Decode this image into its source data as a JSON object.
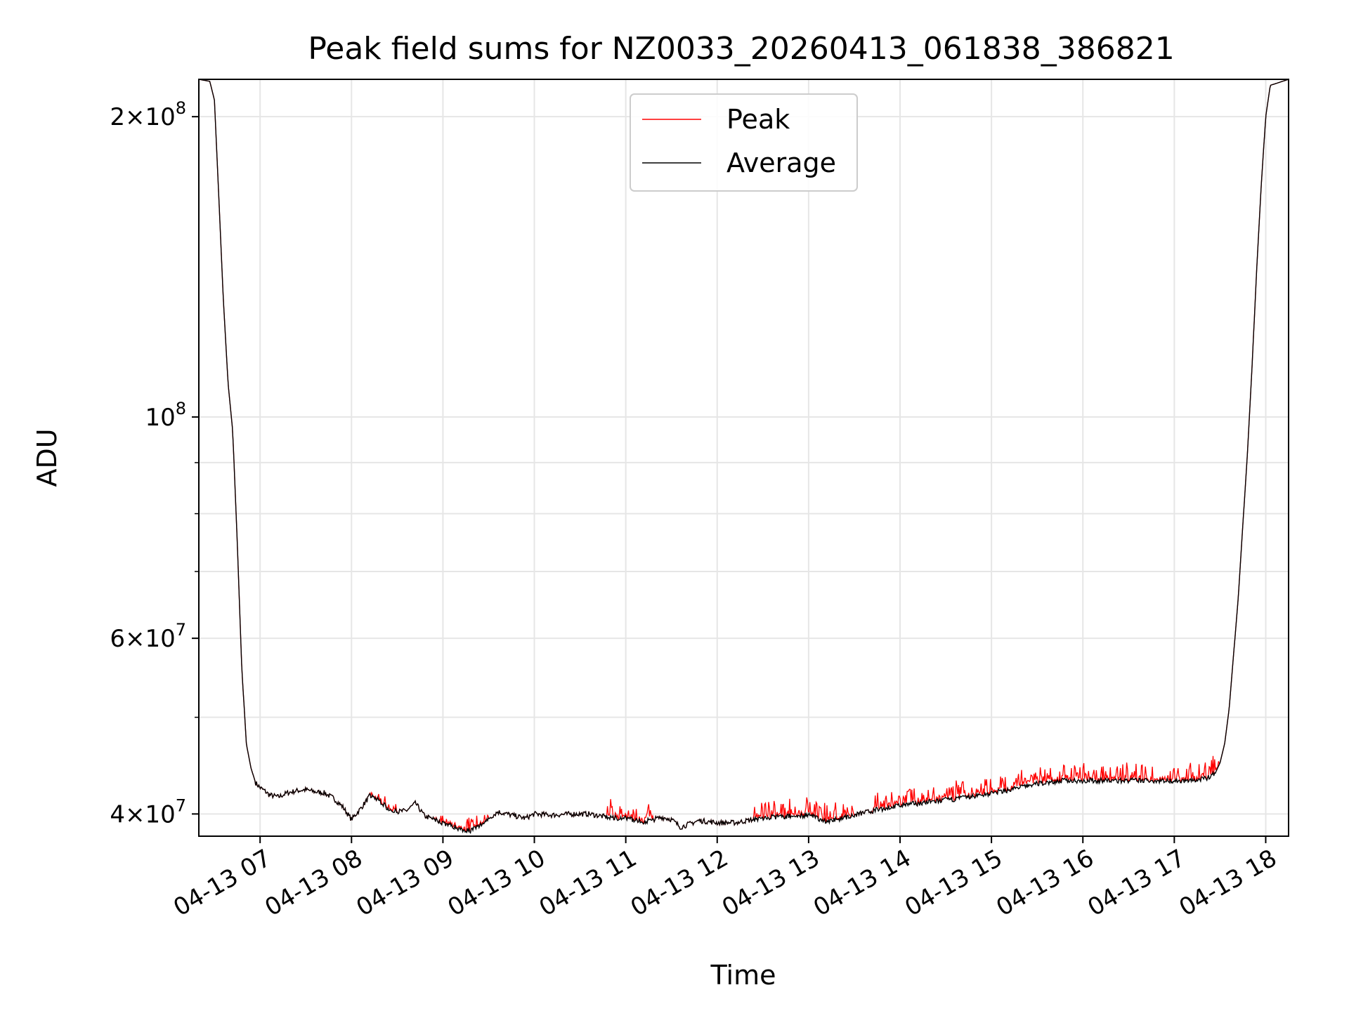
{
  "chart_data": {
    "type": "line",
    "title": "Peak field sums for NZ0033_20260413_061838_386821",
    "xlabel": "Time",
    "ylabel": "ADU",
    "yscale": "log",
    "xlim": [
      6.33,
      18.25
    ],
    "ylim": [
      38000000,
      218000000
    ],
    "x_ticks": [
      {
        "value": 7,
        "label": "04-13 07"
      },
      {
        "value": 8,
        "label": "04-13 08"
      },
      {
        "value": 9,
        "label": "04-13 09"
      },
      {
        "value": 10,
        "label": "04-13 10"
      },
      {
        "value": 11,
        "label": "04-13 11"
      },
      {
        "value": 12,
        "label": "04-13 12"
      },
      {
        "value": 13,
        "label": "04-13 13"
      },
      {
        "value": 14,
        "label": "04-13 14"
      },
      {
        "value": 15,
        "label": "04-13 15"
      },
      {
        "value": 16,
        "label": "04-13 16"
      },
      {
        "value": 17,
        "label": "04-13 17"
      },
      {
        "value": 18,
        "label": "04-13 18"
      }
    ],
    "y_major_ticks": [
      {
        "value": 40000000,
        "mantissa": "4×10",
        "exp": "7"
      },
      {
        "value": 60000000,
        "mantissa": "6×10",
        "exp": "7"
      },
      {
        "value": 100000000,
        "mantissa": "10",
        "exp": "8"
      },
      {
        "value": 200000000,
        "mantissa": "2×10",
        "exp": "8"
      }
    ],
    "y_minor_ticks": [
      50000000,
      70000000,
      80000000,
      90000000
    ],
    "grid": true,
    "legend_position": "top-center",
    "legend": [
      {
        "label": "Peak",
        "color": "#ff0000"
      },
      {
        "label": "Average",
        "color": "#000000"
      }
    ],
    "series": [
      {
        "name": "Average",
        "color": "#000000",
        "x": [
          6.33,
          6.45,
          6.5,
          6.55,
          6.6,
          6.65,
          6.7,
          6.75,
          6.8,
          6.85,
          6.9,
          6.95,
          7.0,
          7.05,
          7.1,
          7.2,
          7.3,
          7.4,
          7.5,
          7.6,
          7.7,
          7.8,
          7.9,
          8.0,
          8.1,
          8.2,
          8.3,
          8.4,
          8.5,
          8.6,
          8.7,
          8.8,
          8.9,
          9.0,
          9.1,
          9.2,
          9.3,
          9.4,
          9.5,
          9.6,
          9.7,
          9.8,
          9.9,
          10.0,
          10.2,
          10.4,
          10.6,
          10.8,
          11.0,
          11.2,
          11.4,
          11.5,
          11.6,
          11.8,
          12.0,
          12.2,
          12.4,
          12.6,
          12.8,
          13.0,
          13.2,
          13.3,
          13.5,
          13.7,
          14.0,
          14.3,
          14.6,
          14.9,
          15.2,
          15.5,
          15.8,
          16.1,
          16.4,
          16.7,
          17.0,
          17.2,
          17.35,
          17.45,
          17.5,
          17.55,
          17.6,
          17.65,
          17.7,
          17.75,
          17.8,
          17.85,
          17.9,
          17.95,
          18.0,
          18.05,
          18.25
        ],
        "values": [
          218000000,
          217000000,
          208000000,
          165000000,
          130000000,
          108000000,
          97000000,
          75000000,
          56000000,
          47000000,
          44500000,
          43000000,
          42500000,
          42200000,
          41800000,
          41600000,
          42000000,
          42200000,
          42300000,
          42100000,
          42000000,
          41500000,
          40700000,
          39500000,
          40500000,
          41700000,
          41300000,
          40500000,
          40200000,
          40300000,
          41000000,
          39800000,
          39500000,
          39200000,
          38900000,
          38600000,
          38500000,
          38900000,
          39600000,
          40200000,
          40000000,
          39800000,
          39600000,
          40000000,
          39900000,
          40000000,
          40000000,
          39700000,
          39600000,
          39300000,
          39700000,
          39500000,
          38800000,
          39400000,
          39200000,
          39200000,
          39500000,
          39700000,
          39800000,
          39900000,
          39300000,
          39500000,
          39900000,
          40300000,
          40800000,
          41100000,
          41400000,
          41800000,
          42300000,
          42900000,
          43200000,
          43200000,
          43200000,
          43200000,
          43200000,
          43200000,
          43400000,
          44000000,
          45000000,
          47000000,
          51000000,
          58000000,
          66000000,
          78000000,
          92000000,
          112000000,
          140000000,
          170000000,
          200000000,
          215000000,
          218000000
        ]
      },
      {
        "name": "Peak",
        "color": "#ff0000",
        "spike_regions": [
          {
            "start": 8.2,
            "end": 8.5,
            "amplitude": 0.015
          },
          {
            "start": 8.9,
            "end": 9.5,
            "amplitude": 0.02
          },
          {
            "start": 10.8,
            "end": 11.3,
            "amplitude": 0.03
          },
          {
            "start": 12.4,
            "end": 13.5,
            "amplitude": 0.03
          },
          {
            "start": 13.7,
            "end": 17.5,
            "amplitude": 0.03
          }
        ]
      }
    ]
  }
}
